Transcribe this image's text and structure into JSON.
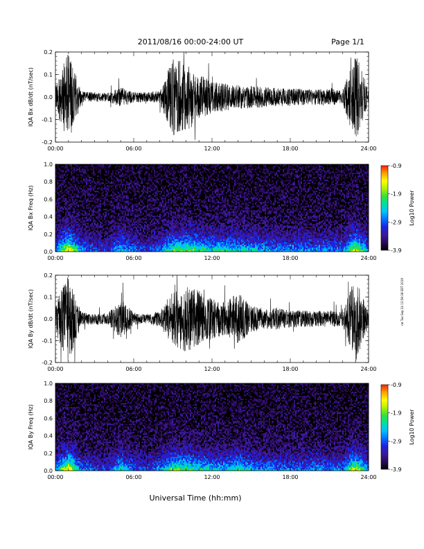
{
  "header": {
    "title": "2011/08/16  00:00-24:00 UT",
    "page": "Page 1/1"
  },
  "side_note": "rat Tue Sep 24 13:58:38 EDT 2019",
  "footer": {
    "xlabel": "Universal Time (hh:mm)"
  },
  "colors": {
    "trace": "#000000",
    "colormap": [
      "#000000",
      "#2a0a5a",
      "#3a1a9a",
      "#2020e0",
      "#0070ff",
      "#00c0ff",
      "#00e0a0",
      "#30e040",
      "#b0f000",
      "#ffff00",
      "#ffa000",
      "#ff2000"
    ]
  },
  "chart_data": [
    {
      "type": "line",
      "title": "",
      "ylabel": "IQA Bx dB/dt (nT/sec)",
      "xlabel": "",
      "xlim": [
        "00:00",
        "24:00"
      ],
      "ylim": [
        -0.2,
        0.2
      ],
      "x_ticks": [
        "00:00",
        "06:00",
        "12:00",
        "18:00",
        "24:00"
      ],
      "y_ticks": [
        "-0.2",
        "-0.1",
        "0.0",
        "0.1",
        "0.2"
      ],
      "grid": false,
      "x": [
        0,
        1,
        2,
        3,
        4,
        5,
        6,
        7,
        8,
        9,
        10,
        11,
        12,
        13,
        14,
        15,
        16,
        17,
        18,
        19,
        20,
        21,
        22,
        23,
        24
      ],
      "envelope": [
        0.06,
        0.2,
        0.025,
        0.02,
        0.02,
        0.045,
        0.025,
        0.02,
        0.03,
        0.17,
        0.16,
        0.1,
        0.07,
        0.06,
        0.055,
        0.05,
        0.045,
        0.04,
        0.04,
        0.035,
        0.035,
        0.04,
        0.03,
        0.2,
        0.03
      ]
    },
    {
      "type": "heatmap",
      "ylabel": "IQA Bx Freq (Hz)",
      "xlim": [
        "00:00",
        "24:00"
      ],
      "ylim": [
        0.0,
        1.0
      ],
      "x_ticks": [
        "00:00",
        "06:00",
        "12:00",
        "18:00",
        "24:00"
      ],
      "y_ticks": [
        "0.0",
        "0.2",
        "0.4",
        "0.6",
        "0.8",
        "1.0"
      ],
      "colorbar": {
        "label": "Log10 Power",
        "range": [
          -3.9,
          -0.9
        ],
        "ticks": [
          "-0.9",
          "-1.9",
          "-2.9",
          "-3.9"
        ]
      },
      "activity": [
        0.3,
        0.9,
        0.35,
        0.25,
        0.2,
        0.45,
        0.3,
        0.2,
        0.3,
        0.6,
        0.65,
        0.55,
        0.5,
        0.5,
        0.45,
        0.45,
        0.4,
        0.35,
        0.35,
        0.35,
        0.35,
        0.35,
        0.3,
        0.8,
        0.3
      ]
    },
    {
      "type": "line",
      "title": "",
      "ylabel": "IQA By dB/dt (nT/sec)",
      "xlabel": "",
      "xlim": [
        "00:00",
        "24:00"
      ],
      "ylim": [
        -0.2,
        0.2
      ],
      "x_ticks": [
        "00:00",
        "06:00",
        "12:00",
        "18:00",
        "24:00"
      ],
      "y_ticks": [
        "-0.2",
        "-0.1",
        "0.0",
        "0.1",
        "0.2"
      ],
      "grid": false,
      "x": [
        0,
        1,
        2,
        3,
        4,
        5,
        6,
        7,
        8,
        9,
        10,
        11,
        12,
        13,
        14,
        15,
        16,
        17,
        18,
        19,
        20,
        21,
        22,
        23,
        24
      ],
      "envelope": [
        0.07,
        0.2,
        0.03,
        0.025,
        0.025,
        0.09,
        0.03,
        0.02,
        0.04,
        0.13,
        0.15,
        0.13,
        0.09,
        0.08,
        0.12,
        0.06,
        0.05,
        0.05,
        0.04,
        0.04,
        0.035,
        0.04,
        0.03,
        0.2,
        0.03
      ]
    },
    {
      "type": "heatmap",
      "ylabel": "IQA By Freq (Hz)",
      "xlim": [
        "00:00",
        "24:00"
      ],
      "ylim": [
        0.0,
        1.0
      ],
      "x_ticks": [
        "00:00",
        "06:00",
        "12:00",
        "18:00",
        "24:00"
      ],
      "y_ticks": [
        "0.0",
        "0.2",
        "0.4",
        "0.6",
        "0.8",
        "1.0"
      ],
      "colorbar": {
        "label": "Log10 Power",
        "range": [
          -3.9,
          -0.9
        ],
        "ticks": [
          "-0.9",
          "-1.9",
          "-2.9",
          "-3.9"
        ]
      },
      "activity": [
        0.3,
        0.9,
        0.3,
        0.25,
        0.2,
        0.5,
        0.3,
        0.2,
        0.35,
        0.6,
        0.6,
        0.5,
        0.45,
        0.4,
        0.55,
        0.4,
        0.35,
        0.35,
        0.3,
        0.3,
        0.35,
        0.3,
        0.3,
        0.8,
        0.3
      ]
    }
  ]
}
